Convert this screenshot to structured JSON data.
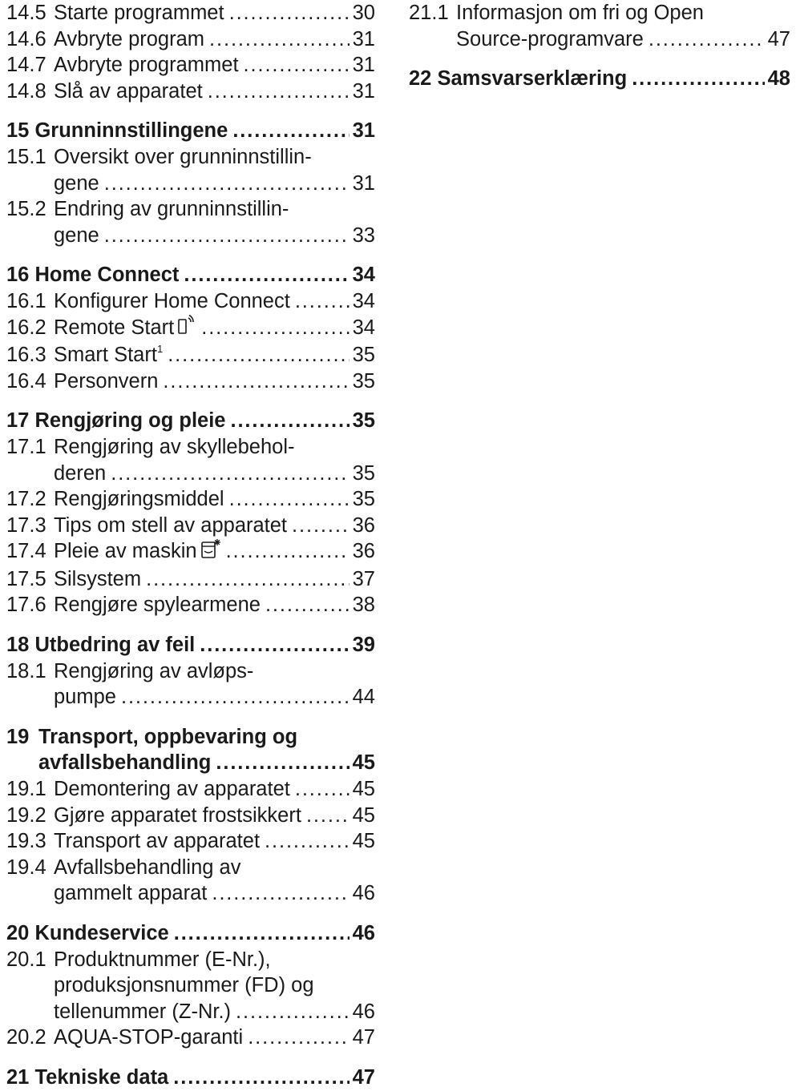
{
  "toc_left": [
    {
      "num": "14.5",
      "lines": [
        "Starte programmet"
      ],
      "page": "30"
    },
    {
      "num": "14.6",
      "lines": [
        "Avbryte program"
      ],
      "page": "31"
    },
    {
      "num": "14.7",
      "lines": [
        "Avbryte programmet"
      ],
      "page": "31"
    },
    {
      "num": "14.8",
      "lines": [
        "Slå av apparatet"
      ],
      "page": "31"
    },
    {
      "num": "15",
      "lines": [
        "Grunninnstillingene"
      ],
      "page": "31"
    },
    {
      "num": "15.1",
      "lines": [
        "Oversikt over grunninnstillin-",
        "gene"
      ],
      "page": "31"
    },
    {
      "num": "15.2",
      "lines": [
        "Endring av grunninnstillin-",
        "gene"
      ],
      "page": "33"
    },
    {
      "num": "16",
      "lines": [
        "Home Connect"
      ],
      "page": "34"
    },
    {
      "num": "16.1",
      "lines": [
        "Konfigurer Home Connect"
      ],
      "page": "34"
    },
    {
      "num": "16.2",
      "lines": [
        "Remote Start"
      ],
      "page": "34",
      "icon": "remote-start-icon"
    },
    {
      "num": "16.3",
      "lines": [
        "Smart Start"
      ],
      "page": "35",
      "footnote": "1"
    },
    {
      "num": "16.4",
      "lines": [
        "Personvern"
      ],
      "page": "35"
    },
    {
      "num": "17",
      "lines": [
        "Rengjøring og pleie"
      ],
      "page": "35"
    },
    {
      "num": "17.1",
      "lines": [
        "Rengjøring av skyllebehol-",
        "deren"
      ],
      "page": "35"
    },
    {
      "num": "17.2",
      "lines": [
        "Rengjøringsmiddel"
      ],
      "page": "35"
    },
    {
      "num": "17.3",
      "lines": [
        "Tips om stell av apparatet"
      ],
      "page": "36"
    },
    {
      "num": "17.4",
      "lines": [
        "Pleie av maskin"
      ],
      "page": "36",
      "icon": "machine-care-icon"
    },
    {
      "num": "17.5",
      "lines": [
        "Silsystem"
      ],
      "page": "37"
    },
    {
      "num": "17.6",
      "lines": [
        "Rengjøre spylearmene"
      ],
      "page": "38"
    },
    {
      "num": "18",
      "lines": [
        "Utbedring av feil"
      ],
      "page": "39"
    },
    {
      "num": "18.1",
      "lines": [
        "Rengjøring av avløps-",
        "pumpe"
      ],
      "page": "44"
    },
    {
      "num": "19",
      "lines": [
        "Transport, oppbevaring og",
        "avfallsbehandling"
      ],
      "page": "45"
    },
    {
      "num": "19.1",
      "lines": [
        "Demontering av apparatet"
      ],
      "page": "45"
    },
    {
      "num": "19.2",
      "lines": [
        "Gjøre apparatet frostsikkert"
      ],
      "page": "45"
    },
    {
      "num": "19.3",
      "lines": [
        "Transport av apparatet"
      ],
      "page": "45"
    },
    {
      "num": "19.4",
      "lines": [
        "Avfallsbehandling av",
        "gammelt apparat"
      ],
      "page": "46"
    },
    {
      "num": "20",
      "lines": [
        "Kundeservice"
      ],
      "page": "46"
    },
    {
      "num": "20.1",
      "lines": [
        "Produktnummer (E-Nr.),",
        "produksjonsnummer (FD) og",
        "tellenummer (Z-Nr.)"
      ],
      "page": "46"
    },
    {
      "num": "20.2",
      "lines": [
        "AQUA-STOP-garanti"
      ],
      "page": "47"
    },
    {
      "num": "21",
      "lines": [
        "Tekniske data"
      ],
      "page": "47"
    }
  ],
  "toc_right": [
    {
      "num": "21.1",
      "lines": [
        "Informasjon om fri og Open",
        "Source-programvare"
      ],
      "page": "47"
    },
    {
      "num": "22",
      "lines": [
        "Samsvarserklæring"
      ],
      "page": "48"
    }
  ]
}
